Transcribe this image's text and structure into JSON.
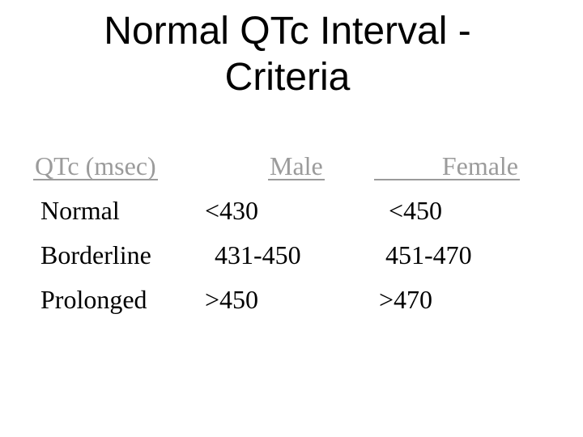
{
  "slide": {
    "title": "Normal QTc Interval -\nCriteria",
    "background_color": "#ffffff"
  },
  "table": {
    "header": {
      "col1": "QTc (msec)",
      "col2": "Male",
      "col3": "Female"
    },
    "rows": [
      {
        "label": "Normal",
        "male": "<430",
        "female": "<450"
      },
      {
        "label": "Borderline",
        "male": "431-450",
        "female": "451-470"
      },
      {
        "label": "Prolonged",
        "male": ">450",
        "female": ">470"
      }
    ]
  },
  "colors": {
    "title_text": "#000000",
    "body_text": "#000000",
    "header_gray": "#9b9b9b"
  }
}
